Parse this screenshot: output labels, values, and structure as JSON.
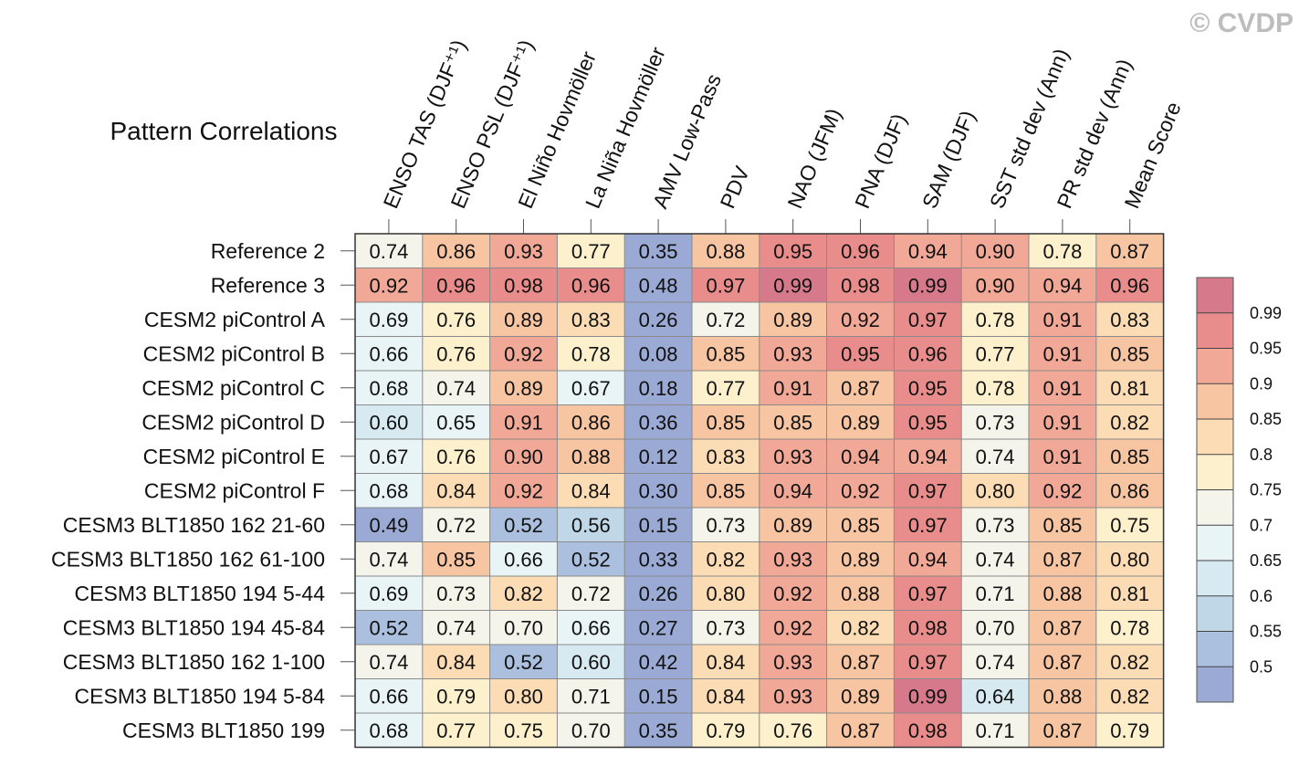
{
  "copyright": "© CVDP",
  "chart_data": {
    "type": "heatmap",
    "title": "Pattern Correlations",
    "columns": [
      "ENSO TAS (DJF⁺¹)",
      "ENSO PSL (DJF⁺¹)",
      "El Niño Hovmöller",
      "La Niña Hovmöller",
      "AMV Low-Pass",
      "PDV",
      "NAO (JFM)",
      "PNA (DJF)",
      "SAM (DJF)",
      "SST std dev (Ann)",
      "PR std dev (Ann)",
      "Mean Score"
    ],
    "rows": [
      "Reference 2",
      "Reference 3",
      "CESM2 piControl A",
      "CESM2 piControl B",
      "CESM2 piControl C",
      "CESM2 piControl D",
      "CESM2 piControl E",
      "CESM2 piControl F",
      "CESM3 BLT1850 162 21-60",
      "CESM3 BLT1850 162 61-100",
      "CESM3 BLT1850 194 5-44",
      "CESM3 BLT1850 194 45-84",
      "CESM3 BLT1850 162 1-100",
      "CESM3 BLT1850 194 5-84",
      "CESM3 BLT1850 199"
    ],
    "values": [
      [
        "0.74",
        "0.86",
        "0.93",
        "0.77",
        "0.35",
        "0.88",
        "0.95",
        "0.96",
        "0.94",
        "0.90",
        "0.78",
        "0.87"
      ],
      [
        "0.92",
        "0.96",
        "0.98",
        "0.96",
        "0.48",
        "0.97",
        "0.99",
        "0.98",
        "0.99",
        "0.90",
        "0.94",
        "0.96"
      ],
      [
        "0.69",
        "0.76",
        "0.89",
        "0.83",
        "0.26",
        "0.72",
        "0.89",
        "0.92",
        "0.97",
        "0.78",
        "0.91",
        "0.83"
      ],
      [
        "0.66",
        "0.76",
        "0.92",
        "0.78",
        "0.08",
        "0.85",
        "0.93",
        "0.95",
        "0.96",
        "0.77",
        "0.91",
        "0.85"
      ],
      [
        "0.68",
        "0.74",
        "0.89",
        "0.67",
        "0.18",
        "0.77",
        "0.91",
        "0.87",
        "0.95",
        "0.78",
        "0.91",
        "0.81"
      ],
      [
        "0.60",
        "0.65",
        "0.91",
        "0.86",
        "0.36",
        "0.85",
        "0.85",
        "0.89",
        "0.95",
        "0.73",
        "0.91",
        "0.82"
      ],
      [
        "0.67",
        "0.76",
        "0.90",
        "0.88",
        "0.12",
        "0.83",
        "0.93",
        "0.94",
        "0.94",
        "0.74",
        "0.91",
        "0.85"
      ],
      [
        "0.68",
        "0.84",
        "0.92",
        "0.84",
        "0.30",
        "0.85",
        "0.94",
        "0.92",
        "0.97",
        "0.80",
        "0.92",
        "0.86"
      ],
      [
        "0.49",
        "0.72",
        "0.52",
        "0.56",
        "0.15",
        "0.73",
        "0.89",
        "0.85",
        "0.97",
        "0.73",
        "0.85",
        "0.75"
      ],
      [
        "0.74",
        "0.85",
        "0.66",
        "0.52",
        "0.33",
        "0.82",
        "0.93",
        "0.89",
        "0.94",
        "0.74",
        "0.87",
        "0.80"
      ],
      [
        "0.69",
        "0.73",
        "0.82",
        "0.72",
        "0.26",
        "0.80",
        "0.92",
        "0.88",
        "0.97",
        "0.71",
        "0.88",
        "0.81"
      ],
      [
        "0.52",
        "0.74",
        "0.70",
        "0.66",
        "0.27",
        "0.73",
        "0.92",
        "0.82",
        "0.98",
        "0.70",
        "0.87",
        "0.78"
      ],
      [
        "0.74",
        "0.84",
        "0.52",
        "0.60",
        "0.42",
        "0.84",
        "0.93",
        "0.87",
        "0.97",
        "0.74",
        "0.87",
        "0.82"
      ],
      [
        "0.66",
        "0.79",
        "0.80",
        "0.71",
        "0.15",
        "0.84",
        "0.93",
        "0.89",
        "0.99",
        "0.64",
        "0.88",
        "0.82"
      ],
      [
        "0.68",
        "0.77",
        "0.75",
        "0.70",
        "0.35",
        "0.79",
        "0.76",
        "0.87",
        "0.98",
        "0.71",
        "0.87",
        "0.79"
      ]
    ],
    "colorbar": {
      "levels": [
        "0.5",
        "0.55",
        "0.6",
        "0.65",
        "0.7",
        "0.75",
        "0.8",
        "0.85",
        "0.9",
        "0.95",
        "0.99"
      ],
      "thresholds": [
        0.5,
        0.55,
        0.6,
        0.65,
        0.7,
        0.75,
        0.8,
        0.85,
        0.9,
        0.95,
        0.99
      ],
      "colors": [
        "#9aaad4",
        "#abc0de",
        "#c0d7e8",
        "#d7e9f1",
        "#e9f4f6",
        "#f4f4ea",
        "#fdf0cc",
        "#fbdcb4",
        "#f8c5a3",
        "#f1a897",
        "#e88d8b",
        "#d67a8b"
      ]
    },
    "legend_position": "right"
  }
}
